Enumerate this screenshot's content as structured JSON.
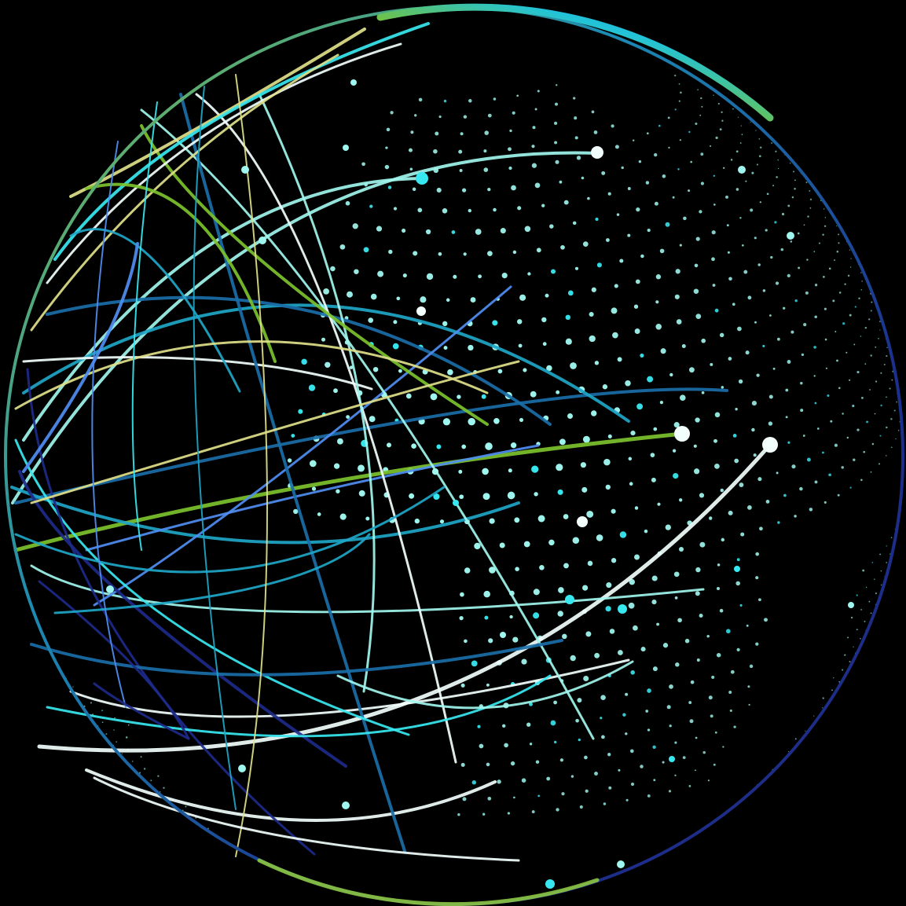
{
  "scene": {
    "background": "#000000",
    "palette": {
      "white": "#f2fffd",
      "aqua": "#9ff6ee",
      "cyan": "#38e8f0",
      "teal": "#1fa6c8",
      "sky": "#4f8ef2",
      "steel": "#1a6ea8",
      "navy": "#1d2a8a",
      "lime": "#7cc22e",
      "cream": "#dfe08a"
    },
    "rim_gradient": [
      "#8cc63f",
      "#1c8bb3",
      "#0f6d96",
      "#1b2f8c",
      "#1f2b85",
      "#23a9d6",
      "#8cc63f"
    ]
  }
}
